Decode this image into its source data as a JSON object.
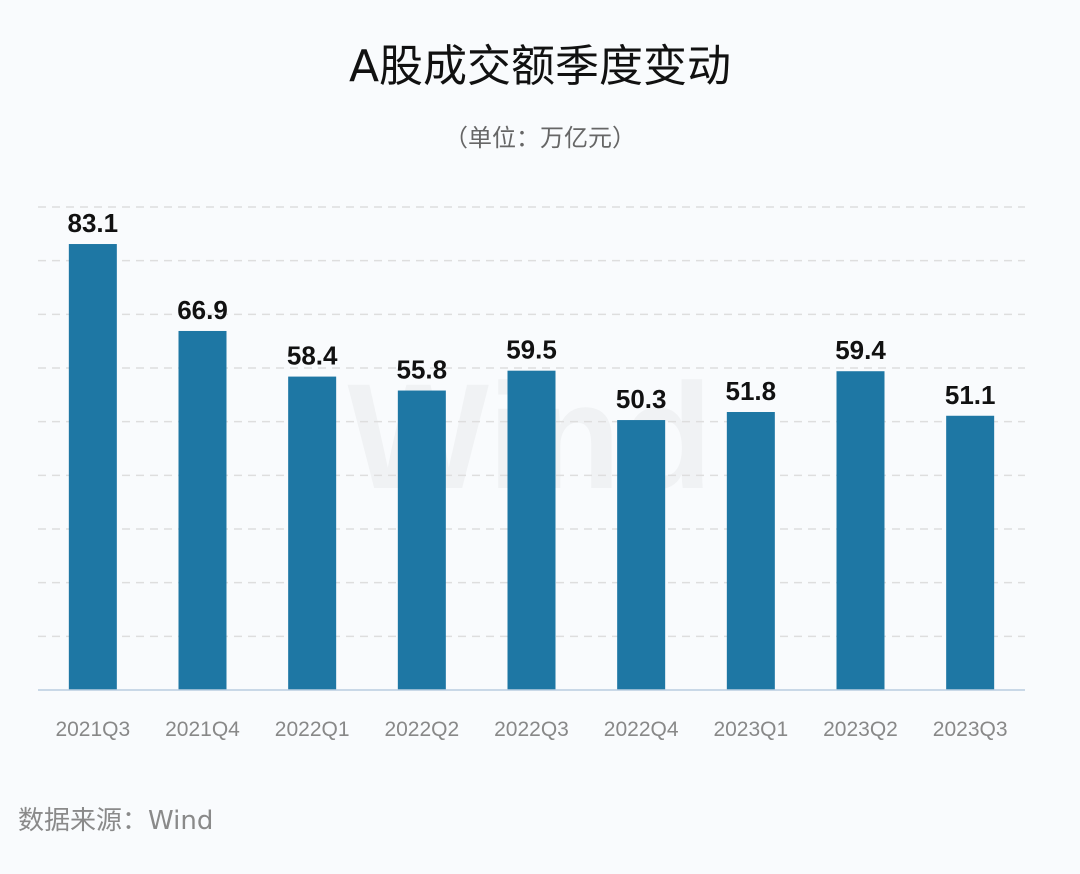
{
  "chart_data": {
    "type": "bar",
    "title": "A股成交额季度变动",
    "subtitle": "（单位：万亿元）",
    "categories": [
      "2021Q3",
      "2021Q4",
      "2022Q1",
      "2022Q2",
      "2022Q3",
      "2022Q4",
      "2023Q1",
      "2023Q2",
      "2023Q3"
    ],
    "values": [
      83.1,
      66.9,
      58.4,
      55.8,
      59.5,
      50.3,
      51.8,
      59.4,
      51.1
    ],
    "xlabel": "",
    "ylabel": "",
    "ylim": [
      0,
      90
    ],
    "grid_step": 10,
    "grid": true,
    "legend": "none",
    "bar_color": "#1e77a4",
    "watermark": "Wind"
  },
  "source": "数据来源：Wind"
}
